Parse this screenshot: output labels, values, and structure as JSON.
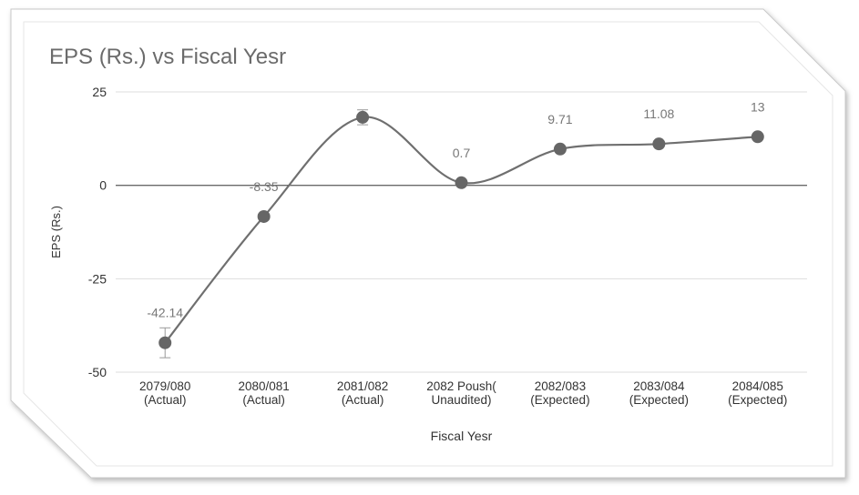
{
  "chart_data": {
    "type": "line",
    "title": "EPS (Rs.) vs Fiscal Yesr",
    "xlabel": "Fiscal Yesr",
    "ylabel": "EPS (Rs.)",
    "ylim": [
      -50,
      25
    ],
    "yticks": [
      "25",
      "0",
      "-25",
      "-50"
    ],
    "categories": [
      [
        "2079/080",
        "(Actual)"
      ],
      [
        "2080/081",
        "(Actual)"
      ],
      [
        "2081/082",
        "(Actual)"
      ],
      [
        "2082 Poush(",
        "Unaudited)"
      ],
      [
        "2082/083",
        "(Expected)"
      ],
      [
        "2083/084",
        "(Expected)"
      ],
      [
        "2084/085",
        "(Expected)"
      ]
    ],
    "values": [
      -42.14,
      -8.35,
      18.2,
      0.7,
      9.71,
      11.08,
      13
    ],
    "data_labels": [
      "-42.14",
      "-8.35",
      "",
      "0.7",
      "9.71",
      "11.08",
      "13"
    ],
    "colors": {
      "line": "#6f6f6f",
      "point": "#666666",
      "grid": "#dedede",
      "zero_line": "#6a6a6a",
      "text": "#333333",
      "label": "#777777",
      "title": "#6b6b6b"
    },
    "grid": true,
    "legend": "none"
  }
}
